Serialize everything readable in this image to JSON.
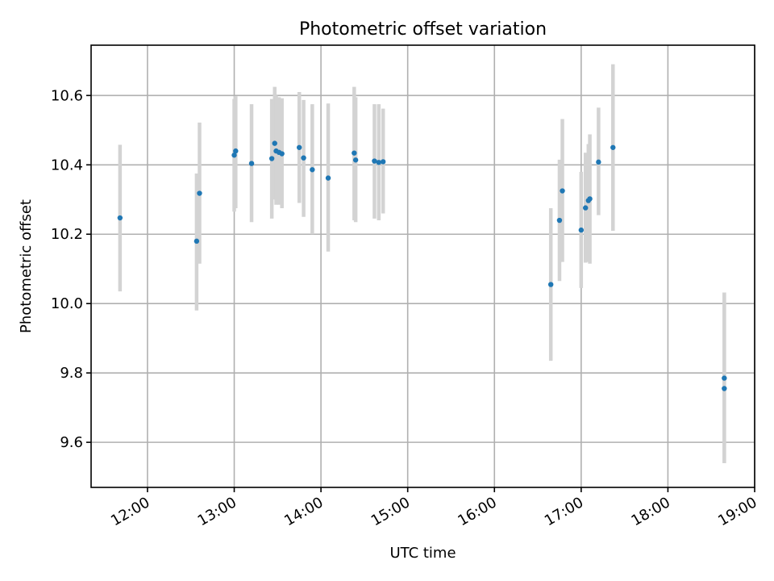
{
  "chart_data": {
    "type": "scatter",
    "title": "Photometric offset variation",
    "xlabel": "UTC time",
    "ylabel": "Photometric offset",
    "xlim": [
      "11:21",
      "19:00"
    ],
    "ylim": [
      9.47,
      10.745
    ],
    "x_ticks": [
      "12:00",
      "13:00",
      "14:00",
      "15:00",
      "16:00",
      "17:00",
      "18:00",
      "19:00"
    ],
    "y_ticks": [
      "9.6",
      "9.8",
      "10.0",
      "10.2",
      "10.4",
      "10.6"
    ],
    "grid": true,
    "colors": {
      "points": "#1f77b4",
      "errorbars": "#d3d3d3",
      "grid": "#b0b0b0"
    },
    "points": [
      {
        "x": "11:41",
        "y": 10.247,
        "ylo": 10.035,
        "yhi": 10.458
      },
      {
        "x": "12:34",
        "y": 10.18,
        "ylo": 9.98,
        "yhi": 10.375
      },
      {
        "x": "12:36",
        "y": 10.318,
        "ylo": 10.115,
        "yhi": 10.522
      },
      {
        "x": "13:00",
        "y": 10.428,
        "ylo": 10.265,
        "yhi": 10.59
      },
      {
        "x": "13:01",
        "y": 10.44,
        "ylo": 10.275,
        "yhi": 10.598
      },
      {
        "x": "13:12",
        "y": 10.404,
        "ylo": 10.235,
        "yhi": 10.575
      },
      {
        "x": "13:26",
        "y": 10.418,
        "ylo": 10.245,
        "yhi": 10.59
      },
      {
        "x": "13:28",
        "y": 10.462,
        "ylo": 10.3,
        "yhi": 10.625
      },
      {
        "x": "13:29",
        "y": 10.44,
        "ylo": 10.285,
        "yhi": 10.6
      },
      {
        "x": "13:31",
        "y": 10.436,
        "ylo": 10.285,
        "yhi": 10.595
      },
      {
        "x": "13:33",
        "y": 10.432,
        "ylo": 10.275,
        "yhi": 10.592
      },
      {
        "x": "13:45",
        "y": 10.45,
        "ylo": 10.29,
        "yhi": 10.61
      },
      {
        "x": "13:48",
        "y": 10.42,
        "ylo": 10.25,
        "yhi": 10.587
      },
      {
        "x": "13:54",
        "y": 10.386,
        "ylo": 10.2,
        "yhi": 10.575
      },
      {
        "x": "14:05",
        "y": 10.362,
        "ylo": 10.15,
        "yhi": 10.577
      },
      {
        "x": "14:23",
        "y": 10.434,
        "ylo": 10.24,
        "yhi": 10.625
      },
      {
        "x": "14:24",
        "y": 10.414,
        "ylo": 10.235,
        "yhi": 10.595
      },
      {
        "x": "14:37",
        "y": 10.411,
        "ylo": 10.245,
        "yhi": 10.575
      },
      {
        "x": "14:40",
        "y": 10.407,
        "ylo": 10.24,
        "yhi": 10.575
      },
      {
        "x": "14:43",
        "y": 10.409,
        "ylo": 10.26,
        "yhi": 10.562
      },
      {
        "x": "16:39",
        "y": 10.055,
        "ylo": 9.835,
        "yhi": 10.275
      },
      {
        "x": "16:45",
        "y": 10.24,
        "ylo": 10.065,
        "yhi": 10.415
      },
      {
        "x": "16:47",
        "y": 10.325,
        "ylo": 10.12,
        "yhi": 10.532
      },
      {
        "x": "17:00",
        "y": 10.212,
        "ylo": 10.045,
        "yhi": 10.38
      },
      {
        "x": "17:03",
        "y": 10.276,
        "ylo": 10.118,
        "yhi": 10.435
      },
      {
        "x": "17:05",
        "y": 10.297,
        "ylo": 10.12,
        "yhi": 10.46
      },
      {
        "x": "17:06",
        "y": 10.302,
        "ylo": 10.115,
        "yhi": 10.488
      },
      {
        "x": "17:12",
        "y": 10.408,
        "ylo": 10.255,
        "yhi": 10.565
      },
      {
        "x": "17:22",
        "y": 10.45,
        "ylo": 10.21,
        "yhi": 10.69
      },
      {
        "x": "18:39",
        "y": 9.785,
        "ylo": 9.54,
        "yhi": 10.032
      },
      {
        "x": "18:39",
        "y": 9.755,
        "ylo": 9.54,
        "yhi": 10.032
      }
    ]
  }
}
